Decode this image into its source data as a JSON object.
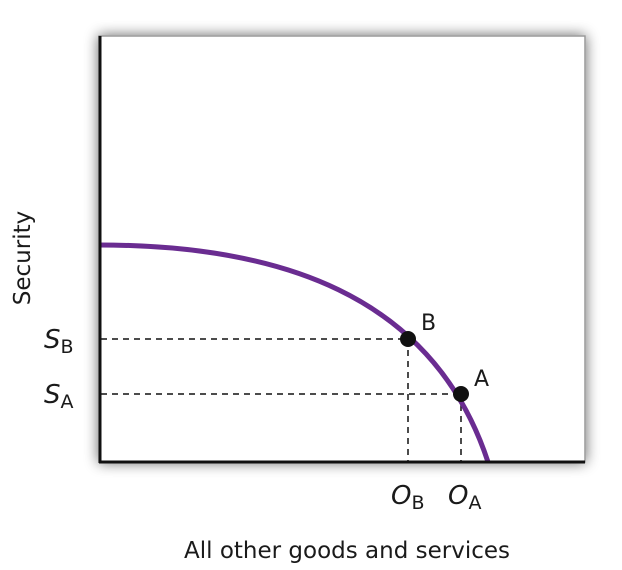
{
  "diagram": {
    "y_axis_label": "Security",
    "x_axis_label": "All other goods and services",
    "curve_color": "#6a2c91",
    "points": [
      {
        "name": "B",
        "y_label": {
          "main": "S",
          "sub": "B"
        },
        "x_label": {
          "main": "O",
          "sub": "B"
        }
      },
      {
        "name": "A",
        "y_label": {
          "main": "S",
          "sub": "A"
        },
        "x_label": {
          "main": "O",
          "sub": "A"
        }
      }
    ]
  }
}
